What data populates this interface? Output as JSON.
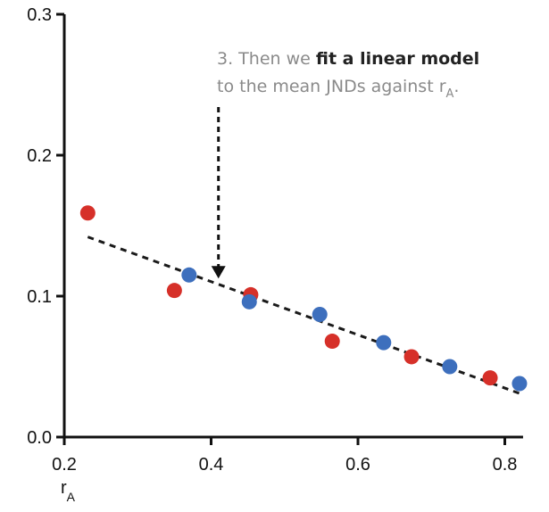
{
  "chart_data": {
    "type": "scatter",
    "title": "",
    "xlabel": "r",
    "xlabel_subscript": "A",
    "ylabel": "",
    "xlim": [
      0.2,
      0.82
    ],
    "ylim": [
      0.0,
      0.3
    ],
    "xticks": [
      0.2,
      0.4,
      0.6,
      0.8
    ],
    "xtick_labels": [
      "0.2",
      "0.4",
      "0.6",
      "0.8"
    ],
    "yticks": [
      0.0,
      0.1,
      0.2,
      0.3
    ],
    "ytick_labels": [
      "0.0",
      "0.1",
      "0.2",
      "0.3"
    ],
    "grid": false,
    "series": [
      {
        "color": "#d63029",
        "x": [
          0.232,
          0.35,
          0.454,
          0.565,
          0.673,
          0.78
        ],
        "y": [
          0.159,
          0.104,
          0.101,
          0.068,
          0.057,
          0.042
        ]
      },
      {
        "color": "#3d6fbd",
        "x": [
          0.37,
          0.452,
          0.548,
          0.635,
          0.725,
          0.82
        ],
        "y": [
          0.115,
          0.096,
          0.087,
          0.067,
          0.05,
          0.038
        ]
      }
    ],
    "fit_line": {
      "style": "dashed",
      "color": "#1a1a1a",
      "x": [
        0.232,
        0.82
      ],
      "y": [
        0.142,
        0.031
      ]
    },
    "annotation": {
      "line1_pre": "3. Then we ",
      "line1_bold": "fit a linear model",
      "line2_pre": "to the mean JNDs against r",
      "line2_sub": "A",
      "line2_post": ".",
      "color": "#8a8a8a",
      "bold_color": "#222222",
      "arrow_target": [
        0.41,
        0.11
      ]
    }
  }
}
